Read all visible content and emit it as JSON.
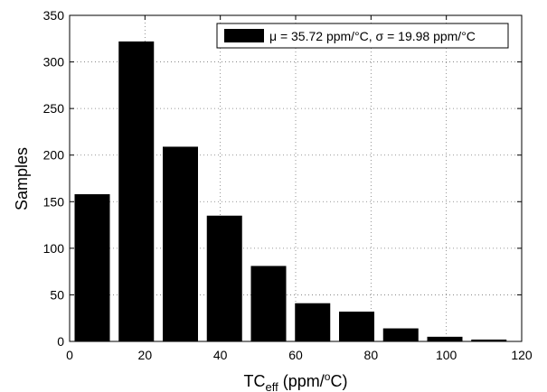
{
  "chart_data": {
    "type": "bar",
    "x": [
      6,
      17.7,
      29.4,
      41.1,
      52.8,
      64.5,
      76.2,
      87.9,
      99.6,
      111.3
    ],
    "values": [
      158,
      322,
      209,
      135,
      81,
      41,
      32,
      14,
      5,
      2
    ],
    "color": "#000000",
    "series_name": "μ = 35.72 ppm/°C, σ = 19.98 ppm/°C",
    "xlabel": [
      "TC",
      "eff",
      " (ppm/",
      "o",
      "C)"
    ],
    "ylabel": "Samples",
    "xlim": [
      0,
      120
    ],
    "xticks": [
      0,
      20,
      40,
      60,
      80,
      100,
      120
    ],
    "ylim": [
      0,
      350
    ],
    "yticks": [
      0,
      50,
      100,
      150,
      200,
      250,
      300,
      350
    ],
    "grid": true,
    "legend": "upper right"
  }
}
